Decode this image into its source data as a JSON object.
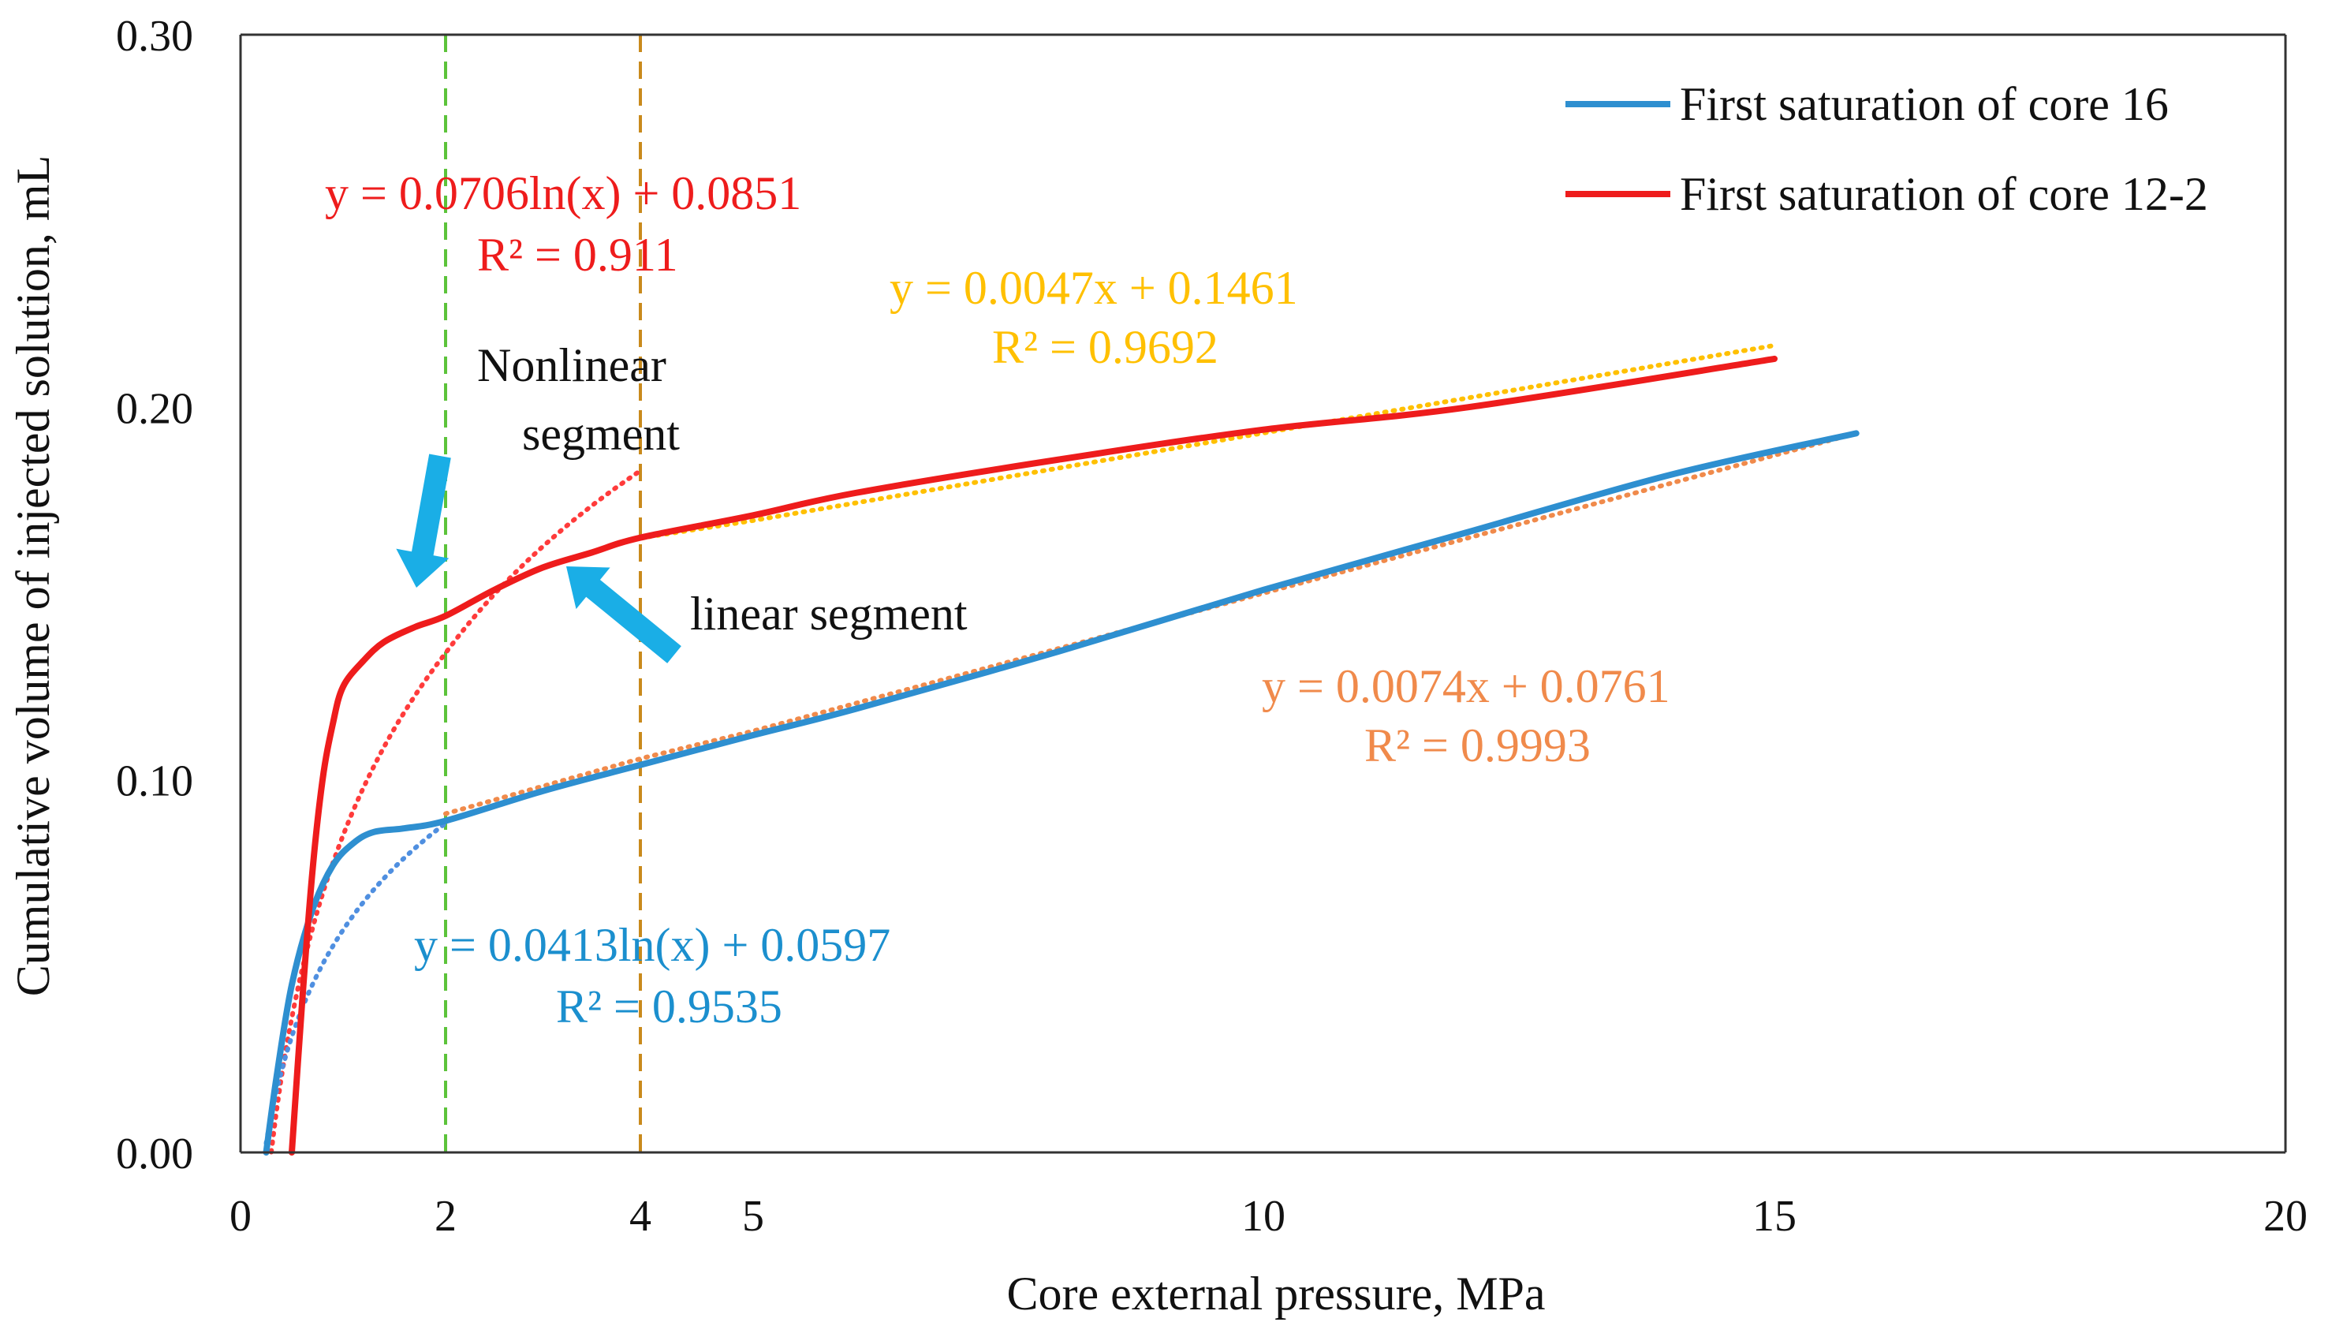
{
  "chart_data": {
    "type": "line",
    "xlabel": "Core external pressure,  MPa",
    "ylabel": "Cumulative volume of injected solution,   mL",
    "xlim": [
      0,
      20
    ],
    "ylim": [
      0,
      0.3
    ],
    "x_ticks": [
      "0",
      "2",
      "4",
      "5",
      "10",
      "15",
      "20"
    ],
    "x_tick_values": [
      0,
      2,
      4,
      5,
      10,
      15,
      20
    ],
    "y_ticks": [
      "0.00",
      "0.10",
      "0.20",
      "0.30"
    ],
    "y_tick_values": [
      0,
      0.1,
      0.2,
      0.3
    ],
    "grid": false,
    "legend_position": "top-right",
    "series": [
      {
        "name": "First saturation of core 16",
        "color": "#2e8fd0",
        "x": [
          0.25,
          0.35,
          0.5,
          0.7,
          0.9,
          1.1,
          1.3,
          1.6,
          2.0,
          3.0,
          4.0,
          5.0,
          6.0,
          8.0,
          10.0,
          12.0,
          14.0,
          15.8
        ],
        "y": [
          0.0,
          0.02,
          0.045,
          0.065,
          0.077,
          0.083,
          0.086,
          0.087,
          0.089,
          0.097,
          0.104,
          0.112,
          0.119,
          0.1345,
          0.151,
          0.1665,
          0.182,
          0.193
        ]
      },
      {
        "name": "First saturation of core 12-2",
        "color": "#ee1c1c",
        "x": [
          0.5,
          0.6,
          0.7,
          0.8,
          0.9,
          1.0,
          1.2,
          1.4,
          1.7,
          2.0,
          2.5,
          3.0,
          3.5,
          4.0,
          5.0,
          6.0,
          8.0,
          10.0,
          12.0,
          15.0
        ],
        "y": [
          0.0,
          0.04,
          0.075,
          0.1,
          0.115,
          0.125,
          0.132,
          0.137,
          0.141,
          0.144,
          0.151,
          0.157,
          0.161,
          0.165,
          0.171,
          0.177,
          0.186,
          0.194,
          0.2,
          0.213
        ]
      }
    ],
    "trendlines": [
      {
        "series": "First saturation of core 12-2",
        "kind": "log",
        "a": 0.0706,
        "b": 0.0851,
        "x_range": [
          0.3,
          4.0
        ],
        "color": "#ff3b3b"
      },
      {
        "series": "First saturation of core 12-2",
        "kind": "linear",
        "a": 0.0047,
        "b": 0.1461,
        "x_range": [
          4.0,
          15.0
        ],
        "color": "#ffc000"
      },
      {
        "series": "First saturation of core 16",
        "kind": "log",
        "a": 0.0413,
        "b": 0.0597,
        "x_range": [
          0.25,
          2.0
        ],
        "color": "#4f8fe0"
      },
      {
        "series": "First saturation of core 16",
        "kind": "linear",
        "a": 0.0074,
        "b": 0.0761,
        "x_range": [
          2.0,
          15.8
        ],
        "color": "#f08a4b"
      }
    ],
    "reference_lines": [
      {
        "x": 2,
        "color": "#5cc33a"
      },
      {
        "x": 4,
        "color": "#c98a1c"
      }
    ],
    "annotations": {
      "red_eq": {
        "line1": "y = 0.0706ln(x) + 0.0851",
        "line2": "R² = 0.911",
        "color": "#ee1c1c"
      },
      "yellow_eq": {
        "line1": "y = 0.0047x + 0.1461",
        "line2": "R² = 0.9692",
        "color": "#ffc000"
      },
      "orange_eq": {
        "line1": "y = 0.0074x + 0.0761",
        "line2": "R² = 0.9993",
        "color": "#f08a4b"
      },
      "blue_eq": {
        "line1": "y = 0.0413ln(x) + 0.0597",
        "line2": "R² = 0.9535",
        "color": "#1b8fce"
      },
      "nonlinear_label": {
        "line1": "Nonlinear",
        "line2": "segment"
      },
      "linear_label": "linear segment",
      "arrow_color": "#1aaee6"
    }
  }
}
